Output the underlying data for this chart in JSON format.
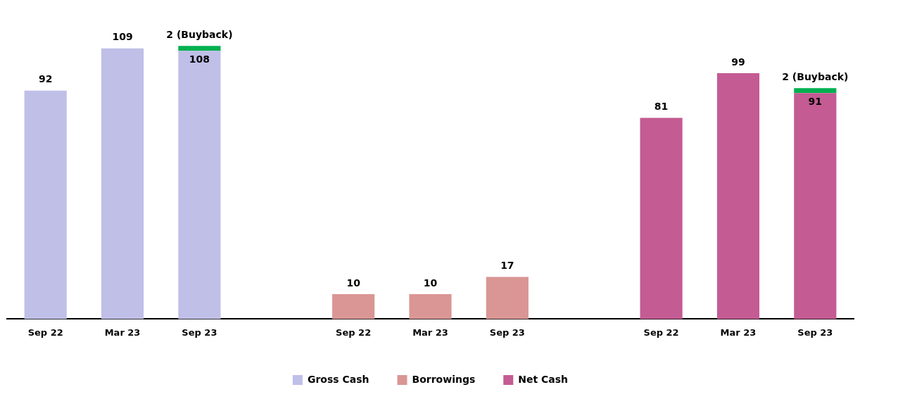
{
  "chart_data": {
    "type": "bar",
    "stacked": true,
    "legend": "bottom",
    "grid": false,
    "categories": [
      "Sep 22",
      "Mar 23",
      "Sep 23",
      null,
      "Sep 22",
      "Mar 23",
      "Sep 23",
      null,
      "Sep 22",
      "Mar 23",
      "Sep 23"
    ],
    "series": [
      {
        "name": "Gross Cash",
        "color": "#bfbfe8",
        "values": [
          92,
          109,
          108,
          null,
          null,
          null,
          null,
          null,
          null,
          null,
          null
        ],
        "value_labels": [
          "92",
          "109",
          "108",
          null,
          null,
          null,
          null,
          null,
          null,
          null,
          null
        ]
      },
      {
        "name": "Borrowings",
        "color": "#d99694",
        "values": [
          null,
          null,
          null,
          null,
          10,
          10,
          17,
          null,
          null,
          null,
          null
        ],
        "value_labels": [
          null,
          null,
          null,
          null,
          "10",
          "10",
          "17",
          null,
          null,
          null,
          null
        ]
      },
      {
        "name": "Net Cash",
        "color": "#c45b93",
        "values": [
          null,
          null,
          null,
          null,
          null,
          null,
          null,
          null,
          81,
          99,
          91
        ],
        "value_labels": [
          null,
          null,
          null,
          null,
          null,
          null,
          null,
          null,
          "81",
          "99",
          "91"
        ]
      },
      {
        "color": "#00b050",
        "values": [
          null,
          null,
          2,
          null,
          null,
          null,
          null,
          null,
          null,
          null,
          2
        ],
        "value_labels": [
          null,
          null,
          "2 (Buyback)",
          null,
          null,
          null,
          null,
          null,
          null,
          null,
          "2 (Buyback)"
        ]
      }
    ]
  }
}
